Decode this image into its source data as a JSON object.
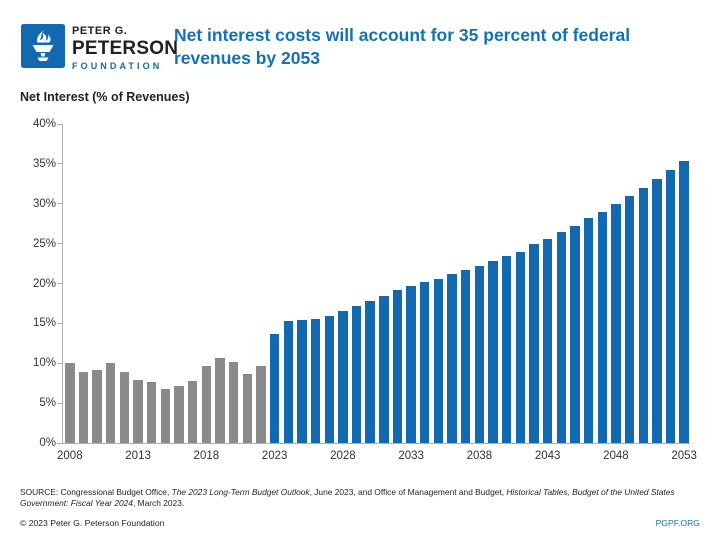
{
  "header": {
    "logo": {
      "icon": "torch-icon",
      "line1": "PETER G.",
      "line2": "PETERSON",
      "line3": "FOUNDATION"
    },
    "title_line1": "Net interest costs will account for 35 percent of federal",
    "title_line2": "revenues by 2053"
  },
  "chart": {
    "subtitle": "Net Interest (% of Revenues)"
  },
  "chart_data": {
    "type": "bar",
    "title": "Net Interest (% of Revenues)",
    "x": [
      2008,
      2009,
      2010,
      2011,
      2012,
      2013,
      2014,
      2015,
      2016,
      2017,
      2018,
      2019,
      2020,
      2021,
      2022,
      2023,
      2024,
      2025,
      2026,
      2027,
      2028,
      2029,
      2030,
      2031,
      2032,
      2033,
      2034,
      2035,
      2036,
      2037,
      2038,
      2039,
      2040,
      2041,
      2042,
      2043,
      2044,
      2045,
      2046,
      2047,
      2048,
      2049,
      2050,
      2051,
      2052,
      2053
    ],
    "values": [
      10.0,
      8.9,
      9.1,
      10.0,
      8.9,
      7.9,
      7.6,
      6.8,
      7.2,
      7.8,
      9.7,
      10.7,
      10.1,
      8.7,
      9.6,
      13.7,
      15.3,
      15.4,
      15.5,
      15.9,
      16.6,
      17.2,
      17.8,
      18.4,
      19.2,
      19.7,
      20.2,
      20.6,
      21.2,
      21.7,
      22.2,
      22.8,
      23.4,
      24.0,
      24.9,
      25.6,
      26.4,
      27.2,
      28.2,
      29.0,
      30.0,
      31.0,
      32.0,
      33.1,
      34.2,
      35.3
    ],
    "projection_start_year": 2023,
    "historical_color": "#8a8a8d",
    "projected_color": "#1269b0",
    "ylim": [
      0,
      40
    ],
    "yticks": [
      "0%",
      "5%",
      "10%",
      "15%",
      "20%",
      "25%",
      "30%",
      "35%",
      "40%"
    ],
    "xticks": [
      2008,
      2013,
      2018,
      2023,
      2028,
      2033,
      2038,
      2043,
      2048,
      2053
    ],
    "grid": false,
    "legend": false
  },
  "footer": {
    "source_segments": {
      "s0": "SOURCE: Congressional Budget Office, ",
      "s1": "The 2023 Long-Term Budget Outlook",
      "s2": ", June 2023, and Office of Management and Budget, ",
      "s3": "Historical Tables, Budget of the United States Government: Fiscal Year 2024",
      "s4": ", March 2023."
    },
    "copyright": "© 2023 Peter G. Peterson Foundation",
    "site": "PGPF.ORG"
  },
  "colors": {
    "title_blue": "#1371b7",
    "logo_blue": "#1269b0",
    "bar_blue": "#1269b0",
    "bar_gray": "#8a8a8d",
    "axis_gray": "#aeb0b3",
    "link_blue": "#1371b7"
  }
}
